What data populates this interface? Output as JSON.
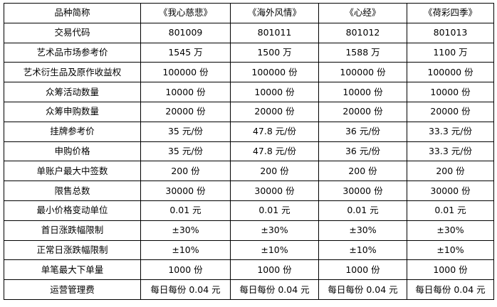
{
  "table": {
    "header": {
      "label": "品种简称",
      "products": [
        "《我心慈悲》",
        "《海外风情》",
        "《心经》",
        "《荷彩四季》"
      ]
    },
    "rows": [
      {
        "label": "交易代码",
        "values": [
          "801009",
          "801011",
          "801012",
          "801013"
        ]
      },
      {
        "label": "艺术品市场参考价",
        "values": [
          "1545 万",
          "1500 万",
          "1588 万",
          "1100 万"
        ]
      },
      {
        "label": "艺术衍生品及原作收益权",
        "values": [
          "100000 份",
          "100000 份",
          "100000 份",
          "100000 份"
        ]
      },
      {
        "label": "众筹活动数量",
        "values": [
          "10000 份",
          "10000 份",
          "10000 份",
          "10000 份"
        ]
      },
      {
        "label": "众筹申购数量",
        "values": [
          "20000 份",
          "20000 份",
          "20000 份",
          "20000 份"
        ]
      },
      {
        "label": "挂牌参考价",
        "values": [
          "35 元/份",
          "47.8 元/份",
          "36 元/份",
          "33.3 元/份"
        ]
      },
      {
        "label": "申购价格",
        "values": [
          "35 元/份",
          "47.8 元/份",
          "36 元/份",
          "33.3 元/份"
        ]
      },
      {
        "label": "单账户最大中签数",
        "values": [
          "200 份",
          "200 份",
          "200 份",
          "200 份"
        ]
      },
      {
        "label": "限售总数",
        "values": [
          "30000 份",
          "30000 份",
          "30000 份",
          "30000 份"
        ]
      },
      {
        "label": "最小价格变动单位",
        "values": [
          "0.01 元",
          "0.01 元",
          "0.01 元",
          "0.01 元"
        ]
      },
      {
        "label": "首日涨跌幅限制",
        "values": [
          "±30%",
          "±30%",
          "±30%",
          "±30%"
        ]
      },
      {
        "label": "正常日涨跌幅限制",
        "values": [
          "±10%",
          "±10%",
          "±10%",
          "±10%"
        ]
      },
      {
        "label": "单笔最大下单量",
        "values": [
          "1000 份",
          "1000 份",
          "1000 份",
          "1000 份"
        ]
      },
      {
        "label": "运营管理费",
        "values": [
          "每日每份 0.04 元",
          "每日每份 0.04 元",
          "每日每份 0.04 元",
          "每日每份 0.04 元"
        ]
      }
    ]
  }
}
